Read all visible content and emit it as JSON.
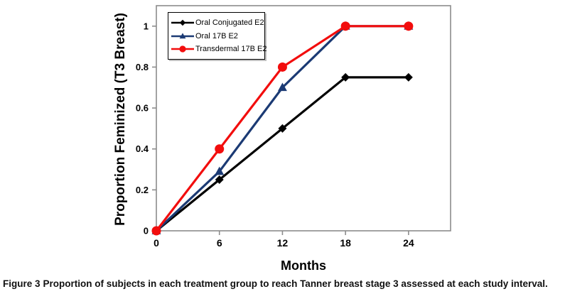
{
  "figure": {
    "caption_label": "Figure 3",
    "caption_text": "Proportion of subjects in each treatment group to reach Tanner breast stage 3 assessed at each study interval."
  },
  "chart_data": {
    "type": "line",
    "title": "",
    "xlabel": "Months",
    "ylabel": "Proportion Feminized (T3 Breast)",
    "x": [
      0,
      6,
      12,
      18,
      24
    ],
    "xticks": [
      0,
      6,
      12,
      18,
      24
    ],
    "yticks": [
      0,
      0.2,
      0.4,
      0.6,
      0.8,
      1
    ],
    "xlim": [
      0,
      28
    ],
    "ylim": [
      0,
      1.1
    ],
    "grid": false,
    "legend_position": "top-left-inside",
    "axis_color": "#8c8c8c",
    "series": [
      {
        "name": "Oral Conjugated E2",
        "color": "#000000",
        "marker": "diamond",
        "values": [
          0,
          0.25,
          0.5,
          0.75,
          0.75
        ]
      },
      {
        "name": "Oral 17B E2",
        "color": "#1b3a74",
        "marker": "triangle",
        "values": [
          0,
          0.29,
          0.7,
          1,
          1
        ]
      },
      {
        "name": "Transdermal 17B E2",
        "color": "#f20d0d",
        "marker": "circle",
        "values": [
          0,
          0.4,
          0.8,
          1,
          1
        ]
      }
    ]
  }
}
